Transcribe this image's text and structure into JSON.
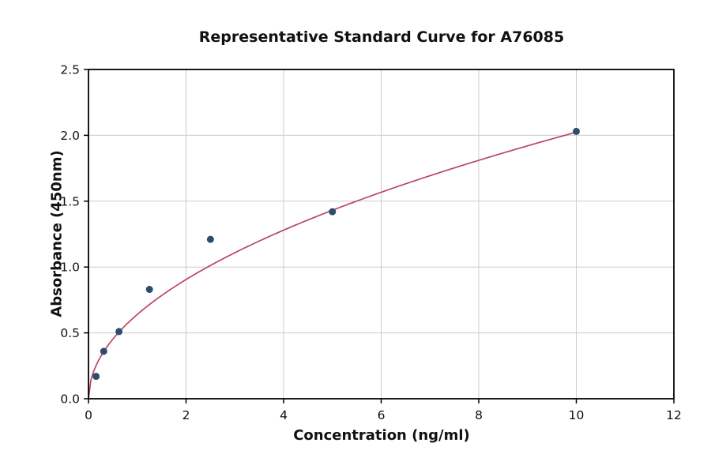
{
  "chart_data": {
    "type": "scatter",
    "title": "Representative Standard Curve for A76085",
    "xlabel": "Concentration (ng/ml)",
    "ylabel": "Absorbance (450nm)",
    "xlim": [
      0,
      12
    ],
    "ylim": [
      0,
      2.5
    ],
    "x_ticks": [
      0,
      2,
      4,
      6,
      8,
      10,
      12
    ],
    "x_tick_labels": [
      "0",
      "2",
      "4",
      "6",
      "8",
      "10",
      "12"
    ],
    "y_ticks": [
      0,
      0.5,
      1.0,
      1.5,
      2.0,
      2.5
    ],
    "y_tick_labels": [
      "0.0",
      "0.5",
      "1.0",
      "1.5",
      "2.0",
      "2.5"
    ],
    "grid": true,
    "legend": "none",
    "points": {
      "x": [
        0.156,
        0.3125,
        0.625,
        1.25,
        2.5,
        5,
        10
      ],
      "y": [
        0.17,
        0.36,
        0.51,
        0.83,
        1.21,
        1.42,
        2.03
      ]
    },
    "fit_curve": {
      "type": "power",
      "a": 0.64,
      "b": 0.5,
      "x_start": 0,
      "x_end": 10
    },
    "colors": {
      "point": "#2e4d6e",
      "curve": "#bb4468",
      "grid": "#cccccc",
      "axis": "#000000",
      "background": "#ffffff"
    }
  }
}
